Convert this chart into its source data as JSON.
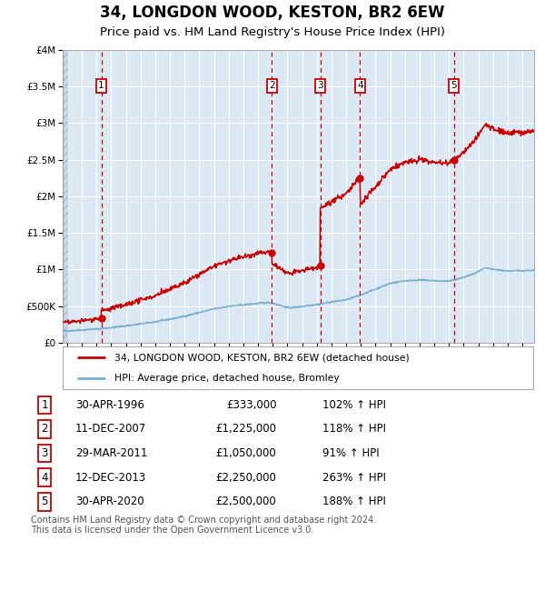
{
  "title": "34, LONGDON WOOD, KESTON, BR2 6EW",
  "subtitle": "Price paid vs. HM Land Registry's House Price Index (HPI)",
  "title_fontsize": 12,
  "subtitle_fontsize": 9.5,
  "background_color": "#dce9f5",
  "plot_bg_color": "#dce9f5",
  "grid_color": "#ffffff",
  "ylim": [
    0,
    4000000
  ],
  "yticks": [
    0,
    500000,
    1000000,
    1500000,
    2000000,
    2500000,
    3000000,
    3500000,
    4000000
  ],
  "ytick_labels": [
    "£0",
    "£500K",
    "£1M",
    "£1.5M",
    "£2M",
    "£2.5M",
    "£3M",
    "£3.5M",
    "£4M"
  ],
  "xlim_start": 1993.7,
  "xlim_end": 2025.8,
  "sale_dates": [
    1996.33,
    2007.95,
    2011.24,
    2013.95,
    2020.33
  ],
  "sale_prices": [
    333000,
    1225000,
    1050000,
    2250000,
    2500000
  ],
  "sale_labels": [
    "1",
    "2",
    "3",
    "4",
    "5"
  ],
  "sale_color": "#cc0000",
  "hpi_color": "#7bafd4",
  "legend_house_label": "34, LONGDON WOOD, KESTON, BR2 6EW (detached house)",
  "legend_hpi_label": "HPI: Average price, detached house, Bromley",
  "table_entries": [
    [
      "1",
      "30-APR-1996",
      "£333,000",
      "102% ↑ HPI"
    ],
    [
      "2",
      "11-DEC-2007",
      "£1,225,000",
      "118% ↑ HPI"
    ],
    [
      "3",
      "29-MAR-2011",
      "£1,050,000",
      "91% ↑ HPI"
    ],
    [
      "4",
      "12-DEC-2013",
      "£2,250,000",
      "263% ↑ HPI"
    ],
    [
      "5",
      "30-APR-2020",
      "£2,500,000",
      "188% ↑ HPI"
    ]
  ],
  "footnote": "Contains HM Land Registry data © Crown copyright and database right 2024.\nThis data is licensed under the Open Government Licence v3.0.",
  "footnote_fontsize": 7,
  "hpi_ctrl_years": [
    1993.7,
    1994,
    1995,
    1996,
    1997,
    1998,
    1999,
    2000,
    2001,
    2002,
    2003,
    2004,
    2005,
    2006,
    2007,
    2007.8,
    2008.5,
    2009,
    2009.5,
    2010,
    2011,
    2011.5,
    2012,
    2013,
    2014,
    2015,
    2016,
    2017,
    2018,
    2019,
    2020,
    2021,
    2021.8,
    2022.5,
    2023,
    2024,
    2025,
    2025.8
  ],
  "hpi_ctrl_vals": [
    155000,
    160000,
    172000,
    185000,
    205000,
    228000,
    255000,
    282000,
    320000,
    360000,
    410000,
    460000,
    495000,
    515000,
    535000,
    548000,
    510000,
    475000,
    480000,
    495000,
    520000,
    535000,
    555000,
    585000,
    650000,
    730000,
    810000,
    845000,
    855000,
    845000,
    840000,
    890000,
    950000,
    1020000,
    1000000,
    980000,
    985000,
    990000
  ]
}
